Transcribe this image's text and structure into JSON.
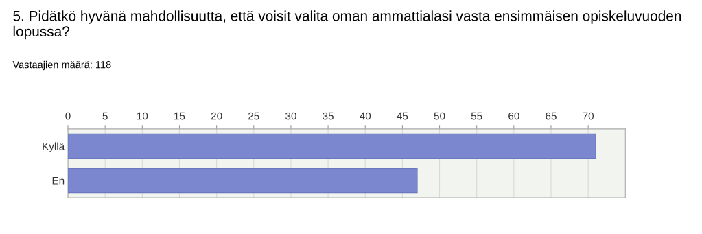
{
  "chart_data": {
    "type": "bar",
    "orientation": "horizontal",
    "title": "5. Pidätkö hyvänä mahdollisuutta, että voisit valita oman ammattialasi vasta ensimmäisen opiskeluvuoden lopussa?",
    "subtitle": "Vastaajien määrä: 118",
    "categories": [
      "Kyllä",
      "En"
    ],
    "values": [
      71,
      47
    ],
    "color": "#7b87cf",
    "xlim": [
      0,
      75
    ],
    "xticks": [
      0,
      5,
      10,
      15,
      20,
      25,
      30,
      35,
      40,
      45,
      50,
      55,
      60,
      65,
      70
    ],
    "grid": "x"
  }
}
